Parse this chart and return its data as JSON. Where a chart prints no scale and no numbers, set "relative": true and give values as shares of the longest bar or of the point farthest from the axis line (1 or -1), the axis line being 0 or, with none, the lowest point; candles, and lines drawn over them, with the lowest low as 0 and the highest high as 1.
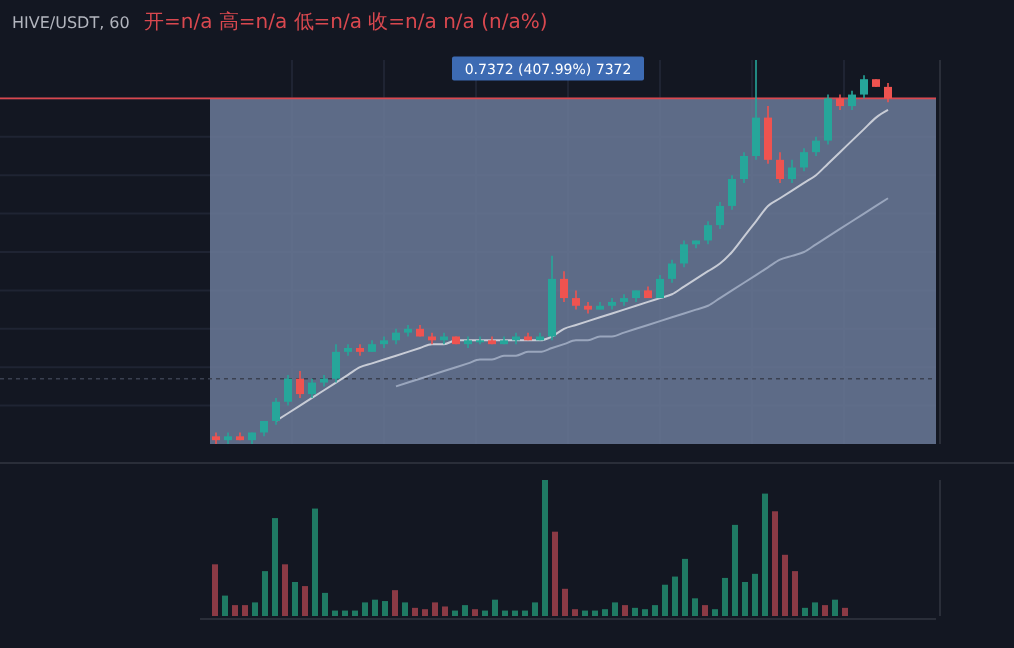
{
  "chart_data": [
    {
      "type": "candlestick",
      "title": "HIVE/USDT, 60",
      "subtitle": "开=n/a 高=n/a 低=n/a 收=n/a n/a (n/a%)",
      "relative": true,
      "tick_labels": false,
      "grid": true,
      "categories": [
        null,
        null,
        null,
        null,
        null,
        null,
        null,
        null,
        null,
        null,
        null,
        null,
        null,
        null,
        null,
        null,
        null,
        null,
        null,
        null,
        null,
        null,
        null,
        null,
        null,
        null,
        null,
        null,
        null,
        null,
        null,
        null,
        null,
        null,
        null,
        null,
        null,
        null,
        null,
        null,
        null,
        null,
        null,
        null,
        null,
        null,
        null,
        null,
        null,
        null,
        null,
        null,
        null,
        null,
        null,
        null,
        null
      ],
      "ohlc": [
        [
          0.02,
          0.03,
          0,
          0.01
        ],
        [
          0.01,
          0.03,
          0,
          0.02
        ],
        [
          0.02,
          0.03,
          0.01,
          0.01
        ],
        [
          0.01,
          0.03,
          0,
          0.03
        ],
        [
          0.03,
          0.06,
          0.02,
          0.06
        ],
        [
          0.06,
          0.12,
          0.05,
          0.11
        ],
        [
          0.11,
          0.18,
          0.1,
          0.17
        ],
        [
          0.17,
          0.19,
          0.12,
          0.13
        ],
        [
          0.13,
          0.17,
          0.12,
          0.16
        ],
        [
          0.16,
          0.18,
          0.15,
          0.17
        ],
        [
          0.17,
          0.26,
          0.16,
          0.24
        ],
        [
          0.24,
          0.26,
          0.23,
          0.25
        ],
        [
          0.25,
          0.26,
          0.23,
          0.24
        ],
        [
          0.24,
          0.27,
          0.24,
          0.26
        ],
        [
          0.26,
          0.28,
          0.25,
          0.27
        ],
        [
          0.27,
          0.3,
          0.26,
          0.29
        ],
        [
          0.29,
          0.31,
          0.28,
          0.3
        ],
        [
          0.3,
          0.31,
          0.28,
          0.28
        ],
        [
          0.28,
          0.29,
          0.26,
          0.27
        ],
        [
          0.27,
          0.29,
          0.26,
          0.28
        ],
        [
          0.28,
          0.28,
          0.26,
          0.26
        ],
        [
          0.26,
          0.28,
          0.25,
          0.27
        ],
        [
          0.27,
          0.28,
          0.26,
          0.27
        ],
        [
          0.27,
          0.28,
          0.26,
          0.26
        ],
        [
          0.26,
          0.28,
          0.26,
          0.27
        ],
        [
          0.27,
          0.29,
          0.26,
          0.28
        ],
        [
          0.28,
          0.29,
          0.27,
          0.27
        ],
        [
          0.27,
          0.29,
          0.27,
          0.28
        ],
        [
          0.28,
          0.49,
          0.27,
          0.43
        ],
        [
          0.43,
          0.45,
          0.37,
          0.38
        ],
        [
          0.38,
          0.4,
          0.35,
          0.36
        ],
        [
          0.36,
          0.37,
          0.34,
          0.35
        ],
        [
          0.35,
          0.37,
          0.35,
          0.36
        ],
        [
          0.36,
          0.38,
          0.35,
          0.37
        ],
        [
          0.37,
          0.39,
          0.36,
          0.38
        ],
        [
          0.38,
          0.4,
          0.37,
          0.4
        ],
        [
          0.4,
          0.41,
          0.38,
          0.38
        ],
        [
          0.38,
          0.44,
          0.38,
          0.43
        ],
        [
          0.43,
          0.48,
          0.42,
          0.47
        ],
        [
          0.47,
          0.53,
          0.46,
          0.52
        ],
        [
          0.52,
          0.53,
          0.51,
          0.53
        ],
        [
          0.53,
          0.58,
          0.52,
          0.57
        ],
        [
          0.57,
          0.63,
          0.56,
          0.62
        ],
        [
          0.62,
          0.7,
          0.61,
          0.69
        ],
        [
          0.69,
          0.76,
          0.68,
          0.75
        ],
        [
          0.75,
          1,
          0.74,
          0.85
        ],
        [
          0.85,
          0.88,
          0.73,
          0.74
        ],
        [
          0.74,
          0.76,
          0.68,
          0.69
        ],
        [
          0.69,
          0.74,
          0.68,
          0.72
        ],
        [
          0.72,
          0.77,
          0.71,
          0.76
        ],
        [
          0.76,
          0.8,
          0.75,
          0.79
        ],
        [
          0.79,
          0.91,
          0.78,
          0.9
        ],
        [
          0.9,
          0.91,
          0.87,
          0.88
        ],
        [
          0.88,
          0.92,
          0.87,
          0.91
        ],
        [
          0.91,
          0.96,
          0.9,
          0.95
        ],
        [
          0.95,
          0.95,
          0.93,
          0.93
        ],
        [
          0.93,
          0.94,
          0.89,
          0.9
        ]
      ],
      "series": [
        {
          "type": "line",
          "color": "#c8ccd6",
          "values": [
            null,
            null,
            null,
            null,
            null,
            0.06,
            0.08,
            0.1,
            0.12,
            0.14,
            0.16,
            0.18,
            0.2,
            0.21,
            0.22,
            0.23,
            0.24,
            0.25,
            0.26,
            0.26,
            0.27,
            0.27,
            0.27,
            0.27,
            0.27,
            0.27,
            0.27,
            0.27,
            0.28,
            0.3,
            0.31,
            0.32,
            0.33,
            0.34,
            0.35,
            0.36,
            0.37,
            0.38,
            0.39,
            0.41,
            0.43,
            0.45,
            0.47,
            0.5,
            0.54,
            0.58,
            0.62,
            0.64,
            0.66,
            0.68,
            0.7,
            0.73,
            0.76,
            0.79,
            0.82,
            0.85,
            0.87
          ]
        },
        {
          "type": "line",
          "color": "#9aa6bd",
          "values": [
            null,
            null,
            null,
            null,
            null,
            null,
            null,
            null,
            null,
            null,
            null,
            null,
            null,
            null,
            null,
            0.15,
            0.16,
            0.17,
            0.18,
            0.19,
            0.2,
            0.21,
            0.22,
            0.22,
            0.23,
            0.23,
            0.24,
            0.24,
            0.25,
            0.26,
            0.27,
            0.27,
            0.28,
            0.28,
            0.29,
            0.3,
            0.31,
            0.32,
            0.33,
            0.34,
            0.35,
            0.36,
            0.38,
            0.4,
            0.42,
            0.44,
            0.46,
            0.48,
            0.49,
            0.5,
            0.52,
            0.54,
            0.56,
            0.58,
            0.6,
            0.62,
            0.64
          ]
        }
      ],
      "bands": [
        {
          "axis": "y",
          "from": 0,
          "to": 0.9,
          "label": "0.7372 (407.99%) 7372",
          "color": "#6b7a99"
        }
      ],
      "ref_lines": [
        {
          "axis": "y",
          "value": 0.9,
          "color": "#d9484f",
          "line_style": "solid"
        },
        {
          "axis": "y",
          "value": 0.17,
          "color": "#3a4050",
          "line_style": "dotted"
        }
      ]
    },
    {
      "type": "bar",
      "relative": true,
      "tick_labels": false,
      "grid": false,
      "categories": [
        null,
        null,
        null,
        null,
        null,
        null,
        null,
        null,
        null,
        null,
        null,
        null,
        null,
        null,
        null,
        null,
        null,
        null,
        null,
        null,
        null,
        null,
        null,
        null,
        null,
        null,
        null,
        null,
        null,
        null,
        null,
        null,
        null,
        null,
        null,
        null,
        null,
        null,
        null,
        null,
        null,
        null,
        null,
        null,
        null,
        null,
        null,
        null,
        null,
        null,
        null,
        null,
        null,
        null,
        null,
        null,
        null,
        null,
        null,
        null,
        null,
        null,
        null,
        null
      ],
      "values": [
        0.38,
        0.15,
        0.08,
        0.08,
        0.1,
        0.33,
        0.72,
        0.38,
        0.25,
        0.22,
        0.79,
        0.17,
        0.04,
        0.04,
        0.04,
        0.1,
        0.12,
        0.11,
        0.19,
        0.1,
        0.06,
        0.05,
        0.1,
        0.07,
        0.04,
        0.08,
        0.05,
        0.04,
        0.12,
        0.04,
        0.04,
        0.04,
        0.1,
        1,
        0.62,
        0.2,
        0.05,
        0.04,
        0.04,
        0.05,
        0.1,
        0.08,
        0.06,
        0.05,
        0.08,
        0.23,
        0.29,
        0.42,
        0.13,
        0.08,
        0.05,
        0.28,
        0.67,
        0.25,
        0.31,
        0.9,
        0.77,
        0.45,
        0.33,
        0.06,
        0.1,
        0.08,
        0.12,
        0.06
      ],
      "colors": [
        "#8b3a45",
        "#1f7a63",
        "#8b3a45",
        "#8b3a45",
        "#1f7a63",
        "#1f7a63",
        "#1f7a63",
        "#8b3a45",
        "#1f7a63",
        "#8b3a45",
        "#1f7a63",
        "#1f7a63",
        "#1f7a63",
        "#1f7a63",
        "#1f7a63",
        "#1f7a63",
        "#1f7a63",
        "#1f7a63",
        "#8b3a45",
        "#1f7a63",
        "#8b3a45",
        "#8b3a45",
        "#8b3a45",
        "#8b3a45",
        "#1f7a63",
        "#1f7a63",
        "#8b3a45",
        "#1f7a63",
        "#1f7a63",
        "#1f7a63",
        "#1f7a63",
        "#1f7a63",
        "#1f7a63",
        "#1f7a63",
        "#8b3a45",
        "#8b3a45",
        "#8b3a45",
        "#1f7a63",
        "#1f7a63",
        "#1f7a63",
        "#1f7a63",
        "#8b3a45",
        "#1f7a63",
        "#1f7a63",
        "#1f7a63",
        "#1f7a63",
        "#1f7a63",
        "#1f7a63",
        "#1f7a63",
        "#8b3a45",
        "#1f7a63",
        "#1f7a63",
        "#1f7a63",
        "#1f7a63",
        "#1f7a63",
        "#1f7a63",
        "#8b3a45",
        "#8b3a45",
        "#8b3a45",
        "#1f7a63",
        "#1f7a63",
        "#8b3a45",
        "#1f7a63",
        "#8b3a45"
      ]
    }
  ]
}
